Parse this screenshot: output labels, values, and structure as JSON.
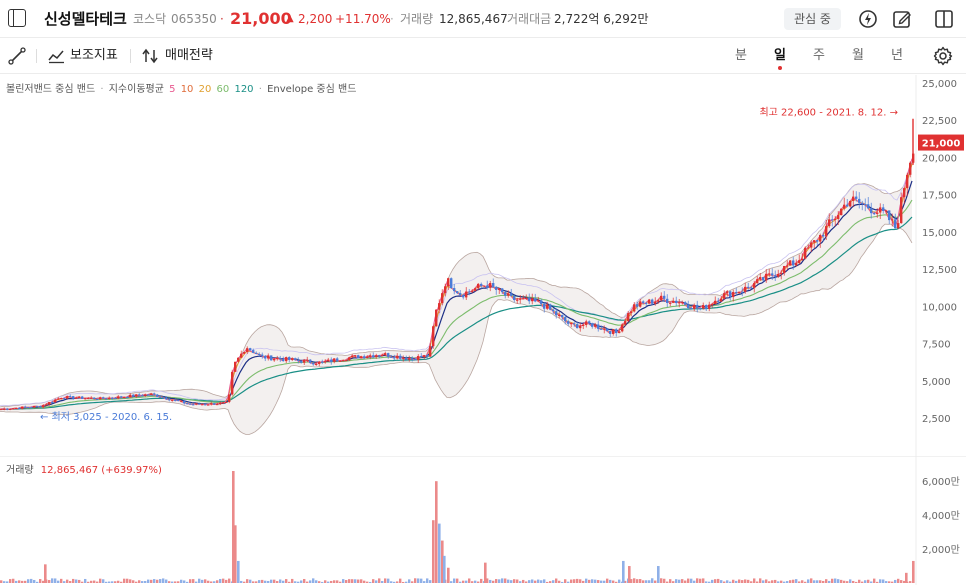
{
  "header": {
    "stock_name": "신성델타테크",
    "market": "코스닥",
    "code": "065350",
    "dot": "·",
    "price": "21,000",
    "change_arrow": "▲",
    "change": "2,200",
    "change_rate": "+11.70%",
    "sep": "·",
    "volume_label": "거래량",
    "volume_value": "12,865,467",
    "amount_label": "거래대금",
    "amount_value": "2,722억 6,292만",
    "watch_button": "관심 중"
  },
  "toolbar": {
    "draw_tool": "",
    "indicators_label": "보조지표",
    "strategy_label": "매매전략",
    "periods": [
      "분",
      "일",
      "주",
      "월",
      "년"
    ],
    "active_period": "일"
  },
  "legend": {
    "bollinger": "볼린저밴드 중심 밴드",
    "ema_label": "지수이동평균",
    "ema_periods": [
      "5",
      "10",
      "20",
      "60",
      "120"
    ],
    "envelope": "Envelope 중심 밴드"
  },
  "colors": {
    "up": "#e03131",
    "down": "#4a7bd8",
    "ema5": "#e8588f",
    "ema10": "#e06c3a",
    "ema20": "#1d2f86",
    "ema60": "#7cbc6c",
    "ema120": "#1a8f86",
    "band": "#b9a6a0"
  },
  "chart_data": {
    "type": "candlestick",
    "y_ticks": [
      "25,000",
      "22,500",
      "20,000",
      "17,500",
      "15,000",
      "12,500",
      "10,000",
      "7,500",
      "5,000",
      "2,500"
    ],
    "ylim": [
      0,
      25000
    ],
    "last_price_label": "21,000",
    "high_annotation": "최고 22,600 - 2021. 8. 12.",
    "low_annotation": "최저 3,025 - 2020. 6. 15.",
    "close_path_keypoints": [
      {
        "t": 0,
        "v": 3100
      },
      {
        "t": 40,
        "v": 3300
      },
      {
        "t": 60,
        "v": 3900
      },
      {
        "t": 100,
        "v": 3800
      },
      {
        "t": 150,
        "v": 4100
      },
      {
        "t": 190,
        "v": 3400
      },
      {
        "t": 227,
        "v": 3500
      },
      {
        "t": 232,
        "v": 6000
      },
      {
        "t": 245,
        "v": 7300
      },
      {
        "t": 260,
        "v": 6600
      },
      {
        "t": 290,
        "v": 6400
      },
      {
        "t": 320,
        "v": 6200
      },
      {
        "t": 340,
        "v": 6500
      },
      {
        "t": 380,
        "v": 6800
      },
      {
        "t": 410,
        "v": 6500
      },
      {
        "t": 428,
        "v": 6700
      },
      {
        "t": 434,
        "v": 9500
      },
      {
        "t": 445,
        "v": 11800
      },
      {
        "t": 460,
        "v": 10800
      },
      {
        "t": 485,
        "v": 11500
      },
      {
        "t": 510,
        "v": 10500
      },
      {
        "t": 540,
        "v": 10200
      },
      {
        "t": 570,
        "v": 8700
      },
      {
        "t": 590,
        "v": 8800
      },
      {
        "t": 615,
        "v": 8200
      },
      {
        "t": 632,
        "v": 10000
      },
      {
        "t": 660,
        "v": 10500
      },
      {
        "t": 680,
        "v": 10300
      },
      {
        "t": 700,
        "v": 9800
      },
      {
        "t": 720,
        "v": 10700
      },
      {
        "t": 745,
        "v": 11200
      },
      {
        "t": 770,
        "v": 12100
      },
      {
        "t": 795,
        "v": 13000
      },
      {
        "t": 820,
        "v": 14800
      },
      {
        "t": 848,
        "v": 17200
      },
      {
        "t": 870,
        "v": 16600
      },
      {
        "t": 885,
        "v": 16100
      },
      {
        "t": 895,
        "v": 15200
      },
      {
        "t": 905,
        "v": 18800
      },
      {
        "t": 913,
        "v": 21000
      }
    ],
    "volume": {
      "label": "거래량",
      "value": "12,865,467 (+639.97%)",
      "y_ticks": [
        "6,000만",
        "4,000만",
        "2,000만"
      ],
      "ylim": [
        0,
        6600
      ],
      "spikes": [
        {
          "t": 44,
          "v": 1100,
          "up": true
        },
        {
          "t": 232,
          "v": 6600,
          "up": true
        },
        {
          "t": 234,
          "v": 3400,
          "up": true
        },
        {
          "t": 237,
          "v": 1300,
          "up": false
        },
        {
          "t": 432,
          "v": 3700,
          "up": true
        },
        {
          "t": 435,
          "v": 6000,
          "up": true
        },
        {
          "t": 438,
          "v": 3500,
          "up": false
        },
        {
          "t": 441,
          "v": 2500,
          "up": true
        },
        {
          "t": 443,
          "v": 1600,
          "up": false
        },
        {
          "t": 447,
          "v": 900,
          "up": true
        },
        {
          "t": 484,
          "v": 1200,
          "up": true
        },
        {
          "t": 622,
          "v": 1300,
          "up": false
        },
        {
          "t": 628,
          "v": 1000,
          "up": true
        },
        {
          "t": 657,
          "v": 1000,
          "up": false
        },
        {
          "t": 905,
          "v": 600,
          "up": true
        },
        {
          "t": 912,
          "v": 1300,
          "up": true
        }
      ]
    }
  }
}
